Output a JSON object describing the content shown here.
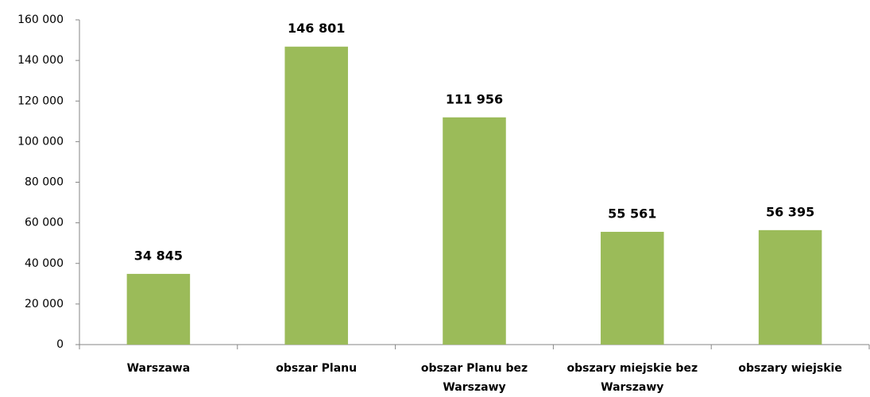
{
  "chart_data": {
    "type": "bar",
    "categories": [
      "Warszawa",
      "obszar Planu",
      "obszar Planu bez Warszawy",
      "obszary miejskie bez Warszawy",
      "obszary wiejskie"
    ],
    "values": [
      34845,
      146801,
      111956,
      55561,
      56395
    ],
    "value_labels": [
      "34 845",
      "146 801",
      "111 956",
      "55 561",
      "56 395"
    ],
    "color": "#9bbb59",
    "ylim": [
      0,
      160000
    ],
    "yticks": [
      0,
      {
        "value": 20000,
        "label": "20 000"
      },
      {
        "value": 40000,
        "label": "40 000"
      },
      {
        "value": 60000,
        "label": "60 000"
      },
      {
        "value": 80000,
        "label": "80 000"
      },
      {
        "value": 100000,
        "label": "100 000"
      },
      {
        "value": 120000,
        "label": "120 000"
      },
      {
        "value": 140000,
        "label": "140 000"
      },
      {
        "value": 160000,
        "label": "160 000"
      }
    ],
    "grid": false
  }
}
